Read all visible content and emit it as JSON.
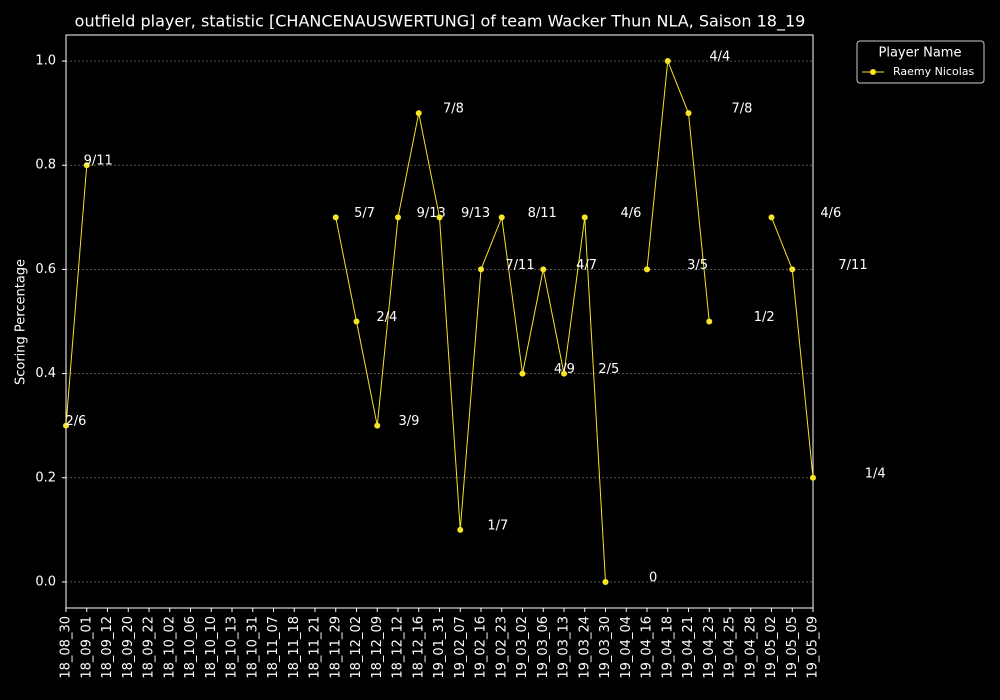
{
  "chart_data": {
    "type": "line",
    "title": "outfield player, statistic [CHANCENAUSWERTUNG] of team Wacker Thun NLA, Saison 18_19",
    "y_label": "Scoring Percentage",
    "legend_title": "Player Name",
    "legend_position": "outside-upper-right",
    "grid": true,
    "categories": [
      "18_08_30",
      "18_09_01",
      "18_09_12",
      "18_09_20",
      "18_09_22",
      "18_10_02",
      "18_10_06",
      "18_10_10",
      "18_10_13",
      "18_10_31",
      "18_11_07",
      "18_11_18",
      "18_11_21",
      "18_11_29",
      "18_12_02",
      "18_12_09",
      "18_12_12",
      "18_12_16",
      "19_01_31",
      "19_02_07",
      "19_02_16",
      "19_02_23",
      "19_03_02",
      "19_03_06",
      "19_03_13",
      "19_03_24",
      "19_03_30",
      "19_04_04",
      "19_04_16",
      "19_04_18",
      "19_04_21",
      "19_04_23",
      "19_04_25",
      "19_04_28",
      "19_05_02",
      "19_05_05",
      "19_05_09"
    ],
    "ylim": [
      -0.05,
      1.05
    ],
    "yticks": [
      {
        "value": 0,
        "label": "0.0"
      },
      0.2,
      0.4,
      0.6,
      0.8,
      {
        "value": 1,
        "label": "1.0"
      }
    ],
    "series": [
      {
        "name": "Raemy Nicolas",
        "color": "#f7e426",
        "values": [
          0.3,
          0.8,
          null,
          null,
          null,
          null,
          null,
          null,
          null,
          null,
          null,
          null,
          null,
          0.7,
          0.5,
          0.3,
          0.7,
          0.9,
          0.7,
          0.1,
          0.6,
          0.7,
          0.4,
          0.6,
          0.4,
          0.7,
          0.0,
          null,
          0.6,
          1.0,
          0.9,
          0.5,
          null,
          null,
          0.7,
          0.6,
          0.2
        ],
        "value_labels": [
          "2/6",
          "9/11",
          null,
          null,
          null,
          null,
          null,
          null,
          null,
          null,
          null,
          null,
          null,
          "5/7",
          "2/4",
          "3/9",
          "9/13",
          "7/8",
          "9/13",
          "1/7",
          "7/11",
          "8/11",
          "4/9",
          "4/7",
          "2/5",
          "4/6",
          "0",
          null,
          "3/5",
          "4/4",
          "7/8",
          "1/2",
          null,
          null,
          "4/6",
          "7/11",
          "1/4"
        ]
      }
    ]
  }
}
